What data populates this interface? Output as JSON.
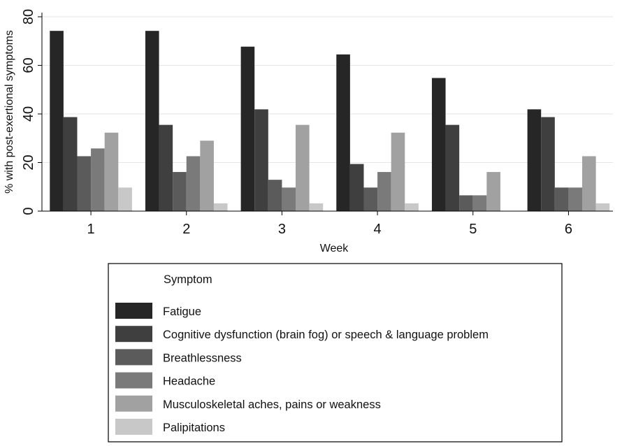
{
  "chart_data": {
    "type": "bar",
    "xlabel": "Week",
    "ylabel": "% with post-exertional symptoms",
    "categories": [
      "1",
      "2",
      "3",
      "4",
      "5",
      "6"
    ],
    "yticks": [
      "0",
      "20",
      "40",
      "60",
      "80"
    ],
    "ylim": [
      0,
      80
    ],
    "grid": true,
    "legend": {
      "title": "Symptom",
      "placement": "bottom"
    },
    "series": [
      {
        "name": "Fatigue",
        "color": "#262626",
        "values": [
          74.2,
          74.2,
          67.7,
          64.5,
          54.8,
          41.9
        ]
      },
      {
        "name": "Cognitive dysfunction (brain fog) or speech & language problem",
        "color": "#3f3f3f",
        "values": [
          38.7,
          35.5,
          41.9,
          19.4,
          35.5,
          38.7
        ]
      },
      {
        "name": "Breathlessness",
        "color": "#5b5b5b",
        "values": [
          22.6,
          16.1,
          12.9,
          9.7,
          6.5,
          9.7
        ]
      },
      {
        "name": "Headache",
        "color": "#7a7a7a",
        "values": [
          25.8,
          22.6,
          9.7,
          16.1,
          6.5,
          9.7
        ]
      },
      {
        "name": "Musculoskeletal aches, pains or weakness",
        "color": "#a1a1a1",
        "values": [
          32.3,
          29.0,
          35.5,
          32.3,
          16.1,
          22.6
        ]
      },
      {
        "name": "Palipitations",
        "color": "#c8c8c8",
        "values": [
          9.7,
          3.2,
          3.2,
          3.2,
          0,
          3.2
        ]
      }
    ]
  }
}
